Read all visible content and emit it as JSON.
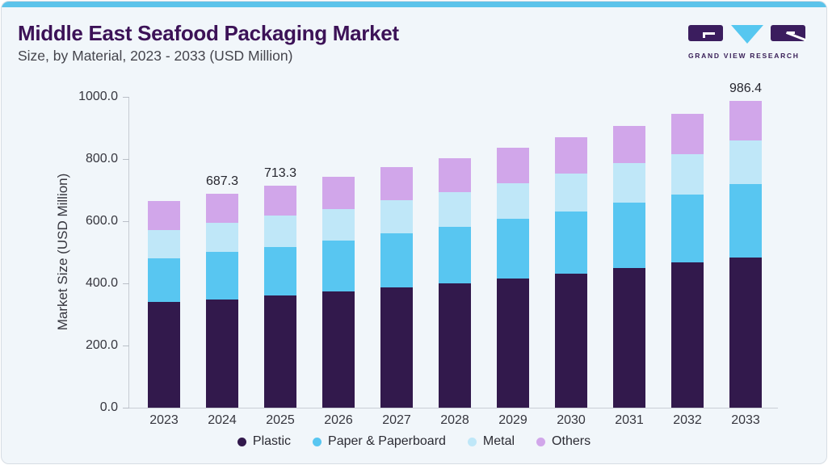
{
  "header": {
    "title": "Middle East Seafood Packaging Market",
    "subtitle": "Size, by Material, 2023 - 2033 (USD Million)",
    "logo_text": "GRAND VIEW RESEARCH"
  },
  "colors": {
    "top_accent_bar": "#5cc3ea",
    "title_text": "#3c1257",
    "card_background": "#f1f6fa",
    "logo_purple": "#3b1d5e",
    "logo_triangle_blue": "#56c7f0",
    "axis_line": "#c6cbd2",
    "plastic": "#32194c",
    "paper_paperboard": "#58c6f1",
    "metal": "#bfe7f8",
    "others": "#d1a6ea"
  },
  "chart_data": {
    "type": "bar",
    "stacked": true,
    "title": "Middle East Seafood Packaging Market Size, by Material, 2023 - 2033 (USD Million)",
    "ylabel": "Market Size (USD Million)",
    "ylim": [
      0,
      1000
    ],
    "grid": false,
    "legend_position": "bottom",
    "yticks": [
      0,
      200,
      400,
      600,
      800,
      1000
    ],
    "ytick_labels": [
      "0.0",
      "200.0",
      "400.0",
      "600.0",
      "800.0",
      "1000.0"
    ],
    "categories": [
      "2023",
      "2024",
      "2025",
      "2026",
      "2027",
      "2028",
      "2029",
      "2030",
      "2031",
      "2032",
      "2033"
    ],
    "series": [
      {
        "name": "Plastic",
        "color": "#32194c",
        "values": [
          339.0,
          348.9,
          361.9,
          374.0,
          387.0,
          400.8,
          416.4,
          430.9,
          448.3,
          467.3,
          482.9
        ]
      },
      {
        "name": "Paper & Paperboard",
        "color": "#58c6f1",
        "values": [
          141.0,
          151.4,
          155.7,
          163.5,
          173.2,
          180.7,
          190.3,
          199.2,
          210.3,
          219.1,
          235.4
        ]
      },
      {
        "name": "Metal",
        "color": "#bfe7f8",
        "values": [
          92.5,
          93.4,
          101.3,
          101.3,
          106.4,
          110.9,
          116.0,
          122.7,
          127.2,
          129.7,
          141.0
        ]
      },
      {
        "name": "Others",
        "color": "#d1a6ea",
        "values": [
          91.5,
          93.6,
          94.4,
          103.9,
          106.2,
          110.6,
          113.2,
          117.1,
          121.2,
          128.1,
          127.1
        ]
      }
    ],
    "totals_shown": {
      "2024": "687.3",
      "2025": "713.3",
      "2033": "986.4"
    }
  }
}
